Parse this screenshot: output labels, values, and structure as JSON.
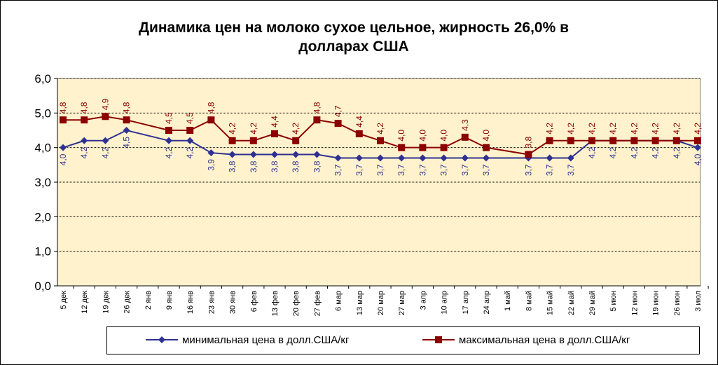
{
  "chart_data": {
    "type": "line",
    "title": "Динамика цен на молоко сухое цельное, жирность 26,0%  в долларах США",
    "title_lines": [
      "Динамика цен на молоко сухое цельное, жирность 26,0%  в",
      "долларах США"
    ],
    "ylim": [
      0,
      6
    ],
    "y_ticks": [
      "0,0",
      "1,0",
      "2,0",
      "3,0",
      "4,0",
      "5,0",
      "6,0"
    ],
    "categories": [
      "5 дек",
      "12 дек",
      "19 дек",
      "26 дек",
      "2 янв",
      "9 янв",
      "16 янв",
      "23 янв",
      "30 янв",
      "6 фев",
      "13 фев",
      "20 фев",
      "27 фев",
      "6 мар",
      "13 мар",
      "20 мар",
      "27 мар",
      "3 апр",
      "10 апр",
      "17 апр",
      "24 апр",
      "1 май",
      "8 май",
      "15 май",
      "22 май",
      "29 май",
      "5 июн",
      "12 июн",
      "19 июн",
      "26 июн",
      "3 июл"
    ],
    "grid": "horizontal",
    "plot_background": "#FFF2CC",
    "legend_position": "bottom",
    "series": [
      {
        "name": "минимальная цена в долл.США/кг",
        "color": "#2E3192",
        "marker": "diamond",
        "values": [
          4.0,
          4.2,
          4.2,
          4.5,
          null,
          4.2,
          4.2,
          3.85,
          3.8,
          3.8,
          3.8,
          3.8,
          3.8,
          3.7,
          3.7,
          3.7,
          3.7,
          3.7,
          3.7,
          3.7,
          3.7,
          null,
          3.7,
          3.7,
          3.7,
          4.2,
          4.2,
          4.2,
          4.2,
          4.2,
          4.0
        ],
        "labels": [
          "4,0",
          "4,2",
          "4,2",
          "4,5",
          null,
          "4,2",
          "4,2",
          "3,9",
          "3,8",
          "3,8",
          "3,8",
          "3,8",
          "3,8",
          "3,7",
          "3,7",
          "3,7",
          "3,7",
          "3,7",
          "3,7",
          "3,7",
          "3,7",
          null,
          "3,7",
          "3,7",
          "3,7",
          "4,2",
          "4,2",
          "4,2",
          "4,2",
          "4,2",
          "4,0"
        ]
      },
      {
        "name": "максимальная цена в долл.США/кг",
        "color": "#8B0000",
        "marker": "square",
        "values": [
          4.8,
          4.8,
          4.9,
          4.8,
          null,
          4.5,
          4.5,
          4.8,
          4.2,
          4.2,
          4.4,
          4.2,
          4.8,
          4.7,
          4.4,
          4.2,
          4.0,
          4.0,
          4.0,
          4.3,
          4.0,
          null,
          3.8,
          4.2,
          4.2,
          4.2,
          4.2,
          4.2,
          4.2,
          4.2,
          4.2
        ],
        "labels": [
          "4,8",
          "4,8",
          "4,9",
          "4,8",
          null,
          "4,5",
          "4,5",
          "4,8",
          "4,2",
          "4,2",
          "4,4",
          "4,2",
          "4,8",
          "4,7",
          "4,4",
          "4,2",
          "4,0",
          "4,0",
          "4,0",
          "4,3",
          "4,0",
          null,
          "3,8",
          "4,2",
          "4,2",
          "4,2",
          "4,2",
          "4,2",
          "4,2",
          "4,2",
          "4,2"
        ]
      }
    ]
  }
}
